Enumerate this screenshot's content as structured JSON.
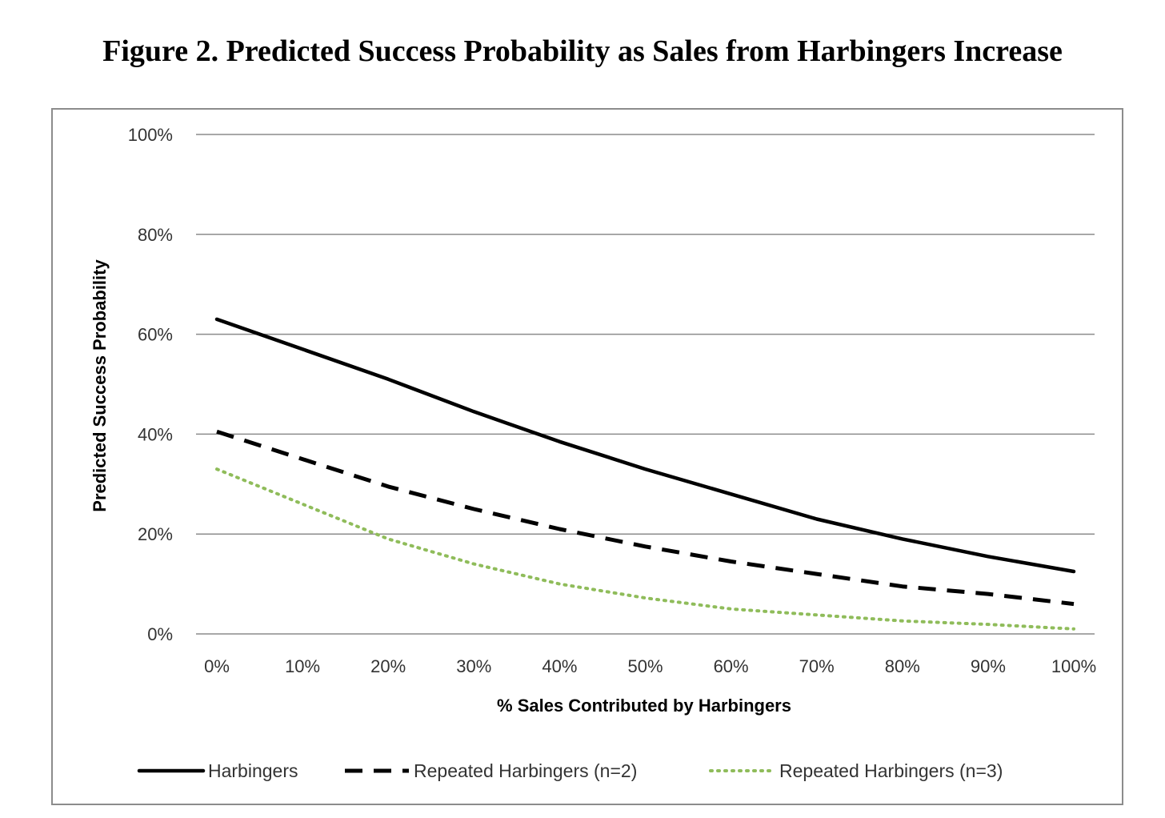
{
  "figure": {
    "title": "Figure 2. Predicted Success Probability as Sales from Harbingers Increase"
  },
  "chart_data": {
    "type": "line",
    "title": "",
    "xlabel": "% Sales Contributed by Harbingers",
    "ylabel": "Predicted Success  Probability",
    "x": [
      0,
      10,
      20,
      30,
      40,
      50,
      60,
      70,
      80,
      90,
      100
    ],
    "x_tick_labels": [
      "0%",
      "10%",
      "20%",
      "30%",
      "40%",
      "50%",
      "60%",
      "70%",
      "80%",
      "90%",
      "100%"
    ],
    "y_tick_values": [
      0,
      20,
      40,
      60,
      80,
      100
    ],
    "y_tick_labels": [
      "0%",
      "20%",
      "40%",
      "60%",
      "80%",
      "100%"
    ],
    "xlim": [
      0,
      100
    ],
    "ylim": [
      0,
      100
    ],
    "grid": "horizontal",
    "legend_position": "bottom",
    "series": [
      {
        "name": "Harbingers",
        "style": "solid",
        "color": "#000000",
        "values": [
          63,
          57,
          51,
          44.5,
          38.5,
          33,
          28,
          23,
          19,
          15.5,
          12.5
        ]
      },
      {
        "name": "Repeated Harbingers (n=2)",
        "style": "dashed",
        "color": "#000000",
        "values": [
          40.5,
          35,
          29.5,
          25,
          21,
          17.5,
          14.5,
          12,
          9.5,
          8,
          6
        ]
      },
      {
        "name": "Repeated Harbingers (n=3)",
        "style": "dotted",
        "color": "#8fbc5a",
        "values": [
          33,
          26,
          19,
          14,
          10,
          7.2,
          5,
          3.8,
          2.6,
          1.9,
          1
        ]
      }
    ]
  }
}
